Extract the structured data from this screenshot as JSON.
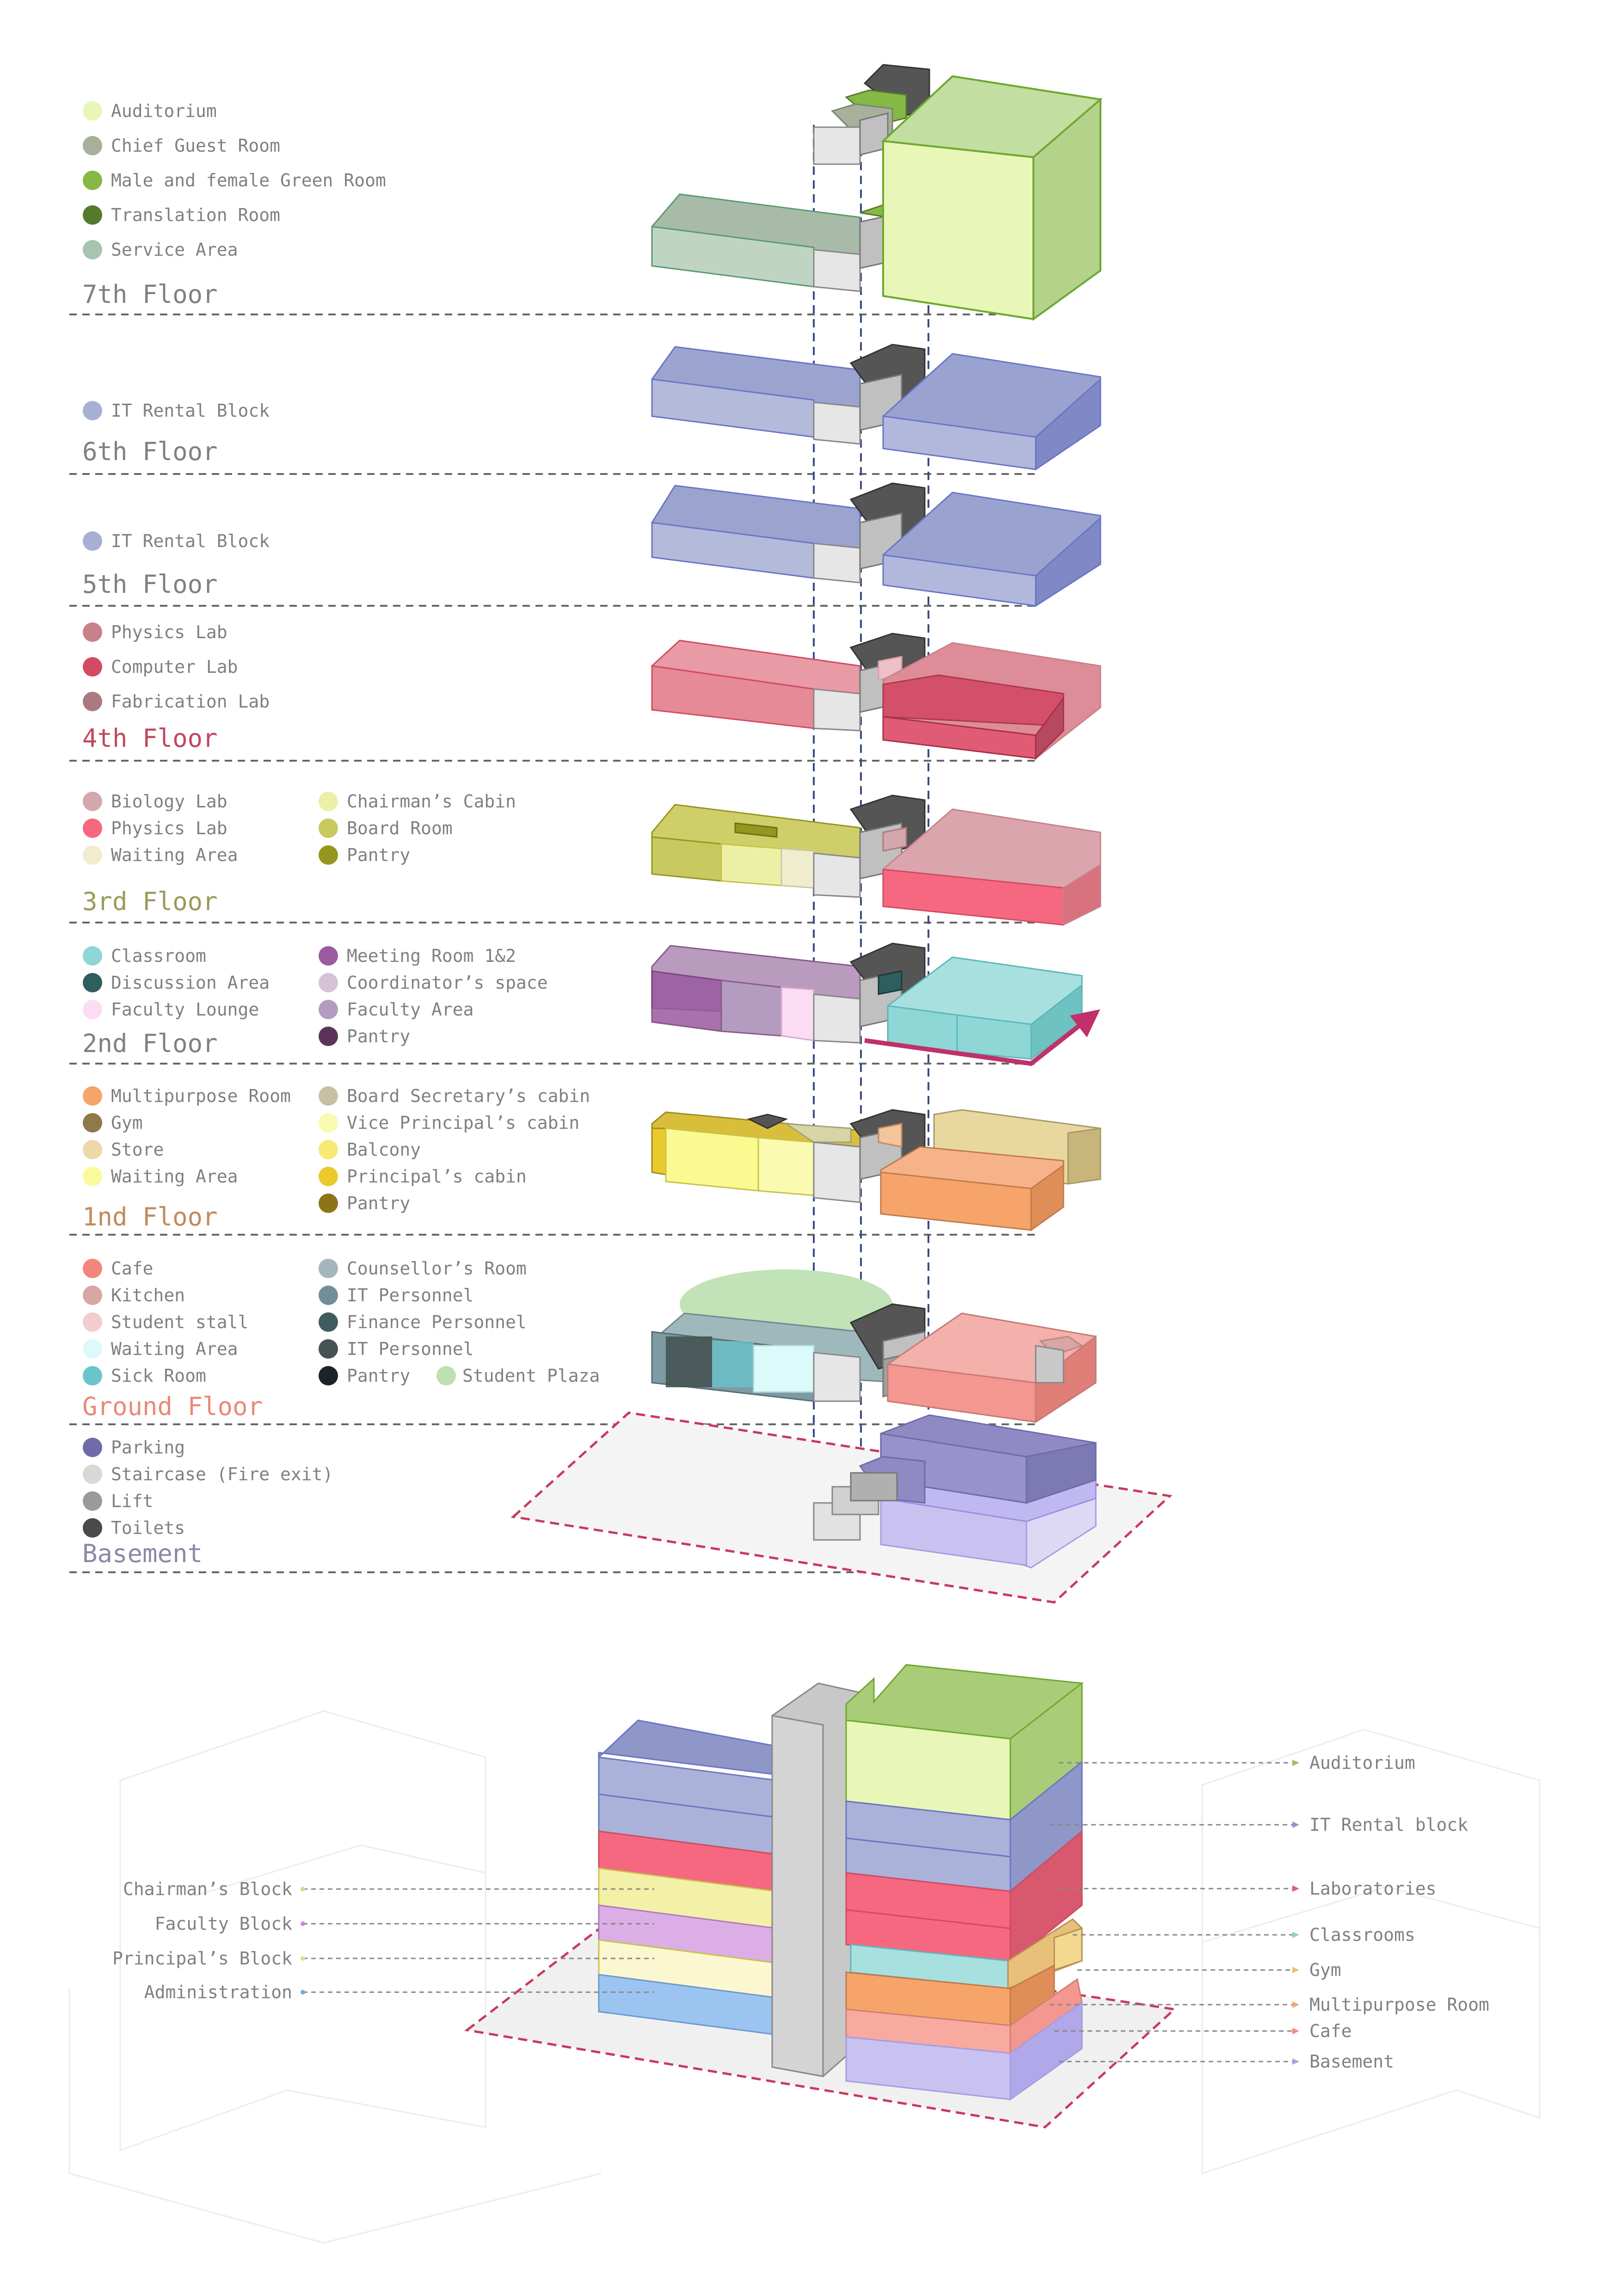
{
  "floors": [
    {
      "id": "seventh",
      "label": "7th Floor",
      "label_color": "#808080",
      "legend_left": [
        {
          "label": "Auditorium",
          "color": "#e8f7b8"
        },
        {
          "label": "Chief Guest Room",
          "color": "#a6b09a"
        },
        {
          "label": "Male and female Green Room",
          "color": "#86b845"
        },
        {
          "label": "Translation Room",
          "color": "#557a2c"
        },
        {
          "label": "Service Area",
          "color": "#a8c3b0"
        }
      ],
      "legend_right": []
    },
    {
      "id": "sixth",
      "label": "6th Floor",
      "label_color": "#808080",
      "legend_left": [
        {
          "label": "IT Rental Block",
          "color": "#a7afd4"
        }
      ],
      "legend_right": []
    },
    {
      "id": "fifth",
      "label": "5th Floor",
      "label_color": "#808080",
      "legend_left": [
        {
          "label": "IT Rental Block",
          "color": "#a7afd4"
        }
      ],
      "legend_right": []
    },
    {
      "id": "fourth",
      "label": "4th Floor",
      "label_color": "#c0485e",
      "legend_left": [
        {
          "label": "Physics Lab",
          "color": "#c7818b"
        },
        {
          "label": "Computer Lab",
          "color": "#d24a63"
        },
        {
          "label": "Fabrication Lab",
          "color": "#a97a80"
        }
      ],
      "legend_right": []
    },
    {
      "id": "third",
      "label": "3rd Floor",
      "label_color": "#9a9a5a",
      "legend_left": [
        {
          "label": "Biology Lab",
          "color": "#d3a8ad"
        },
        {
          "label": "Physics Lab",
          "color": "#f56880"
        },
        {
          "label": "Waiting Area",
          "color": "#f0edcf"
        }
      ],
      "legend_right": [
        {
          "label": "Chairman’s Cabin",
          "color": "#ecf0a7"
        },
        {
          "label": "Board Room",
          "color": "#c8c95e"
        },
        {
          "label": "Pantry",
          "color": "#95961f"
        }
      ]
    },
    {
      "id": "second",
      "label": "2nd Floor",
      "label_color": "#808080",
      "legend_left": [
        {
          "label": "Classroom",
          "color": "#8fd6d6"
        },
        {
          "label": "Discussion Area",
          "color": "#2e5e5e"
        },
        {
          "label": "Faculty Lounge",
          "color": "#fbdcf3"
        }
      ],
      "legend_right": [
        {
          "label": "Meeting Room 1&2",
          "color": "#9a5aa0"
        },
        {
          "label": "Coordinator’s space",
          "color": "#d6c4d6"
        },
        {
          "label": "Faculty Area",
          "color": "#b49cc0"
        },
        {
          "label": "Pantry",
          "color": "#5b3358"
        }
      ]
    },
    {
      "id": "first",
      "label": "1nd Floor",
      "label_color": "#c08a5c",
      "legend_left": [
        {
          "label": "Multipurpose Room",
          "color": "#f6a46a"
        },
        {
          "label": "Gym",
          "color": "#8d7a48"
        },
        {
          "label": "Store",
          "color": "#eed8a8"
        },
        {
          "label": "Waiting Area",
          "color": "#fafa9c"
        }
      ],
      "legend_right": [
        {
          "label": "Board Secretary’s cabin",
          "color": "#c7c1a3"
        },
        {
          "label": "Vice Principal’s cabin",
          "color": "#fafab0"
        },
        {
          "label": "Balcony",
          "color": "#f7ea73"
        },
        {
          "label": "Principal’s cabin",
          "color": "#ebc92a"
        },
        {
          "label": "Pantry",
          "color": "#8d7418"
        }
      ]
    },
    {
      "id": "ground",
      "label": "Ground Floor",
      "label_color": "#e88a78",
      "legend_left": [
        {
          "label": "Cafe",
          "color": "#f4857a"
        },
        {
          "label": "Kitchen",
          "color": "#d8a6a3"
        },
        {
          "label": "Student stall",
          "color": "#f2cdd0"
        },
        {
          "label": "Waiting Area",
          "color": "#ddfafa"
        },
        {
          "label": "Sick Room",
          "color": "#6ac4cc"
        }
      ],
      "legend_right": [
        {
          "label": "Counsellor’s Room",
          "color": "#a4b6bb"
        },
        {
          "label": "IT Personnel",
          "color": "#728e98"
        },
        {
          "label": "Finance Personnel",
          "color": "#3f5c60"
        },
        {
          "label": "IT Personnel",
          "color": "#465352"
        },
        {
          "label": "Pantry",
          "color": "#1b2426"
        }
      ],
      "legend_extra": {
        "label": "Student Plaza",
        "color": "#bfe0b0"
      }
    },
    {
      "id": "basement",
      "label": "Basement",
      "label_color": "#8a8aa6",
      "legend_left": [
        {
          "label": "Parking",
          "color": "#6f6aa8"
        },
        {
          "label": "Staircase (Fire exit)",
          "color": "#d8d8d8"
        },
        {
          "label": "Lift",
          "color": "#9a9a9a"
        },
        {
          "label": "Toilets",
          "color": "#4a4a4a"
        }
      ],
      "legend_right": []
    }
  ],
  "callouts_left": [
    {
      "label": "Chairman’s Block",
      "color": "#d9dd7a"
    },
    {
      "label": "Faculty Block",
      "color": "#c98ad8"
    },
    {
      "label": "Principal’s Block",
      "color": "#e7e07a"
    },
    {
      "label": "Administration",
      "color": "#7aa6e0"
    }
  ],
  "callouts_right": [
    {
      "label": "Auditorium",
      "color": "#9cc06a"
    },
    {
      "label": "IT Rental block",
      "color": "#8d95d0"
    },
    {
      "label": "Laboratories",
      "color": "#e05f78"
    },
    {
      "label": "Classrooms",
      "color": "#8fd0d0"
    },
    {
      "label": "Gym",
      "color": "#e8c07a"
    },
    {
      "label": "Multipurpose Room",
      "color": "#f6a46a"
    },
    {
      "label": "Cafe",
      "color": "#f4857a"
    },
    {
      "label": "Basement",
      "color": "#a9a0e8"
    }
  ]
}
